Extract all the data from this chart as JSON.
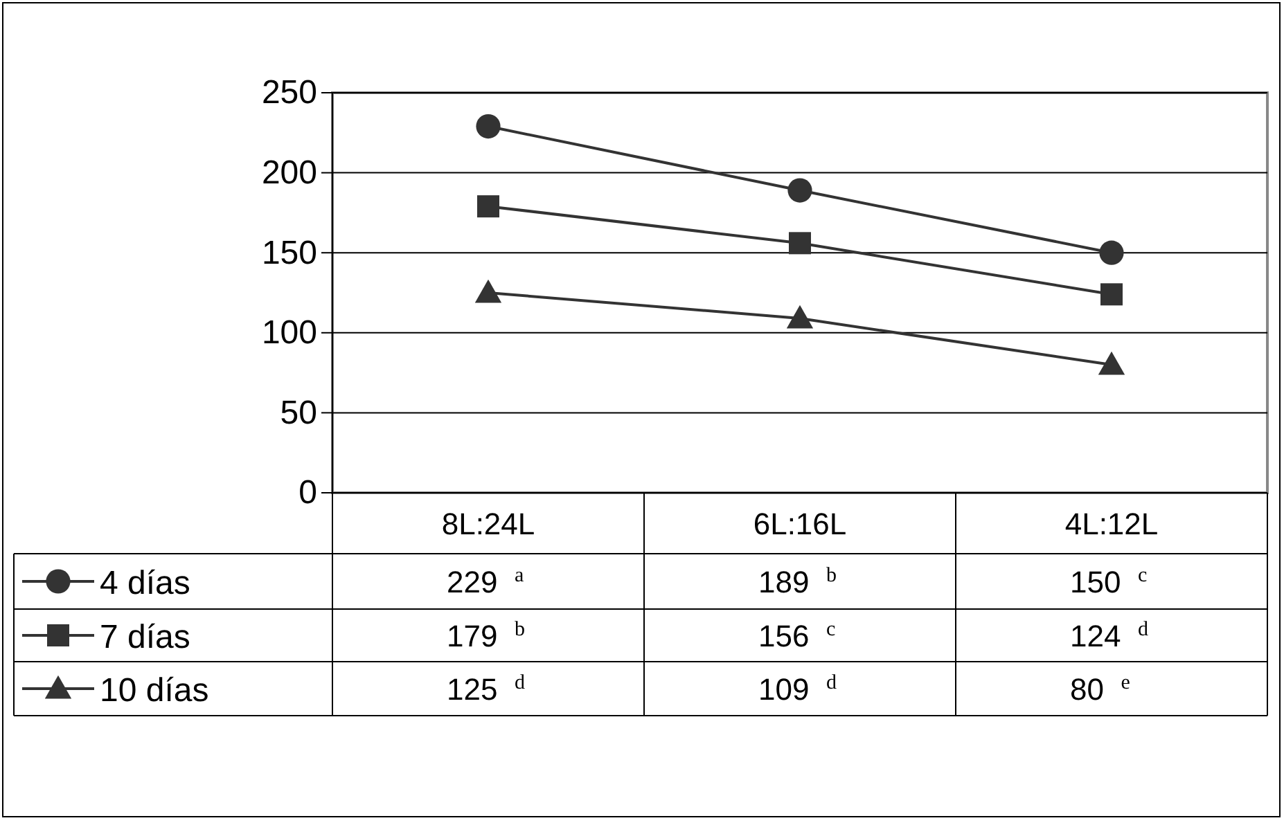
{
  "chart_data": {
    "type": "line",
    "categories": [
      "8L:24L",
      "6L:16L",
      "4L:12L"
    ],
    "series": [
      {
        "name": "4 días",
        "color": "#333333",
        "marker": "circle",
        "values": [
          229,
          189,
          150
        ],
        "value_labels": [
          "229 $^{a}$",
          "189 $^{b}$",
          "150 $^{c}$"
        ]
      },
      {
        "name": "7 días",
        "color": "#333333",
        "marker": "square",
        "values": [
          179,
          156,
          124
        ],
        "value_labels": [
          "179 $^{b}$",
          "156 $^{c}$",
          "124 $^{d}$"
        ]
      },
      {
        "name": "10 días",
        "color": "#333333",
        "marker": "triangle",
        "values": [
          125,
          109,
          80
        ],
        "value_labels": [
          "125 $^{d}$",
          "109 $^{d}$",
          "80 $^{e}$"
        ]
      }
    ],
    "ylim": [
      0,
      250
    ],
    "yticks": [
      0,
      50,
      100,
      150,
      200,
      250
    ],
    "grid": "y",
    "legend": "bottom left"
  }
}
